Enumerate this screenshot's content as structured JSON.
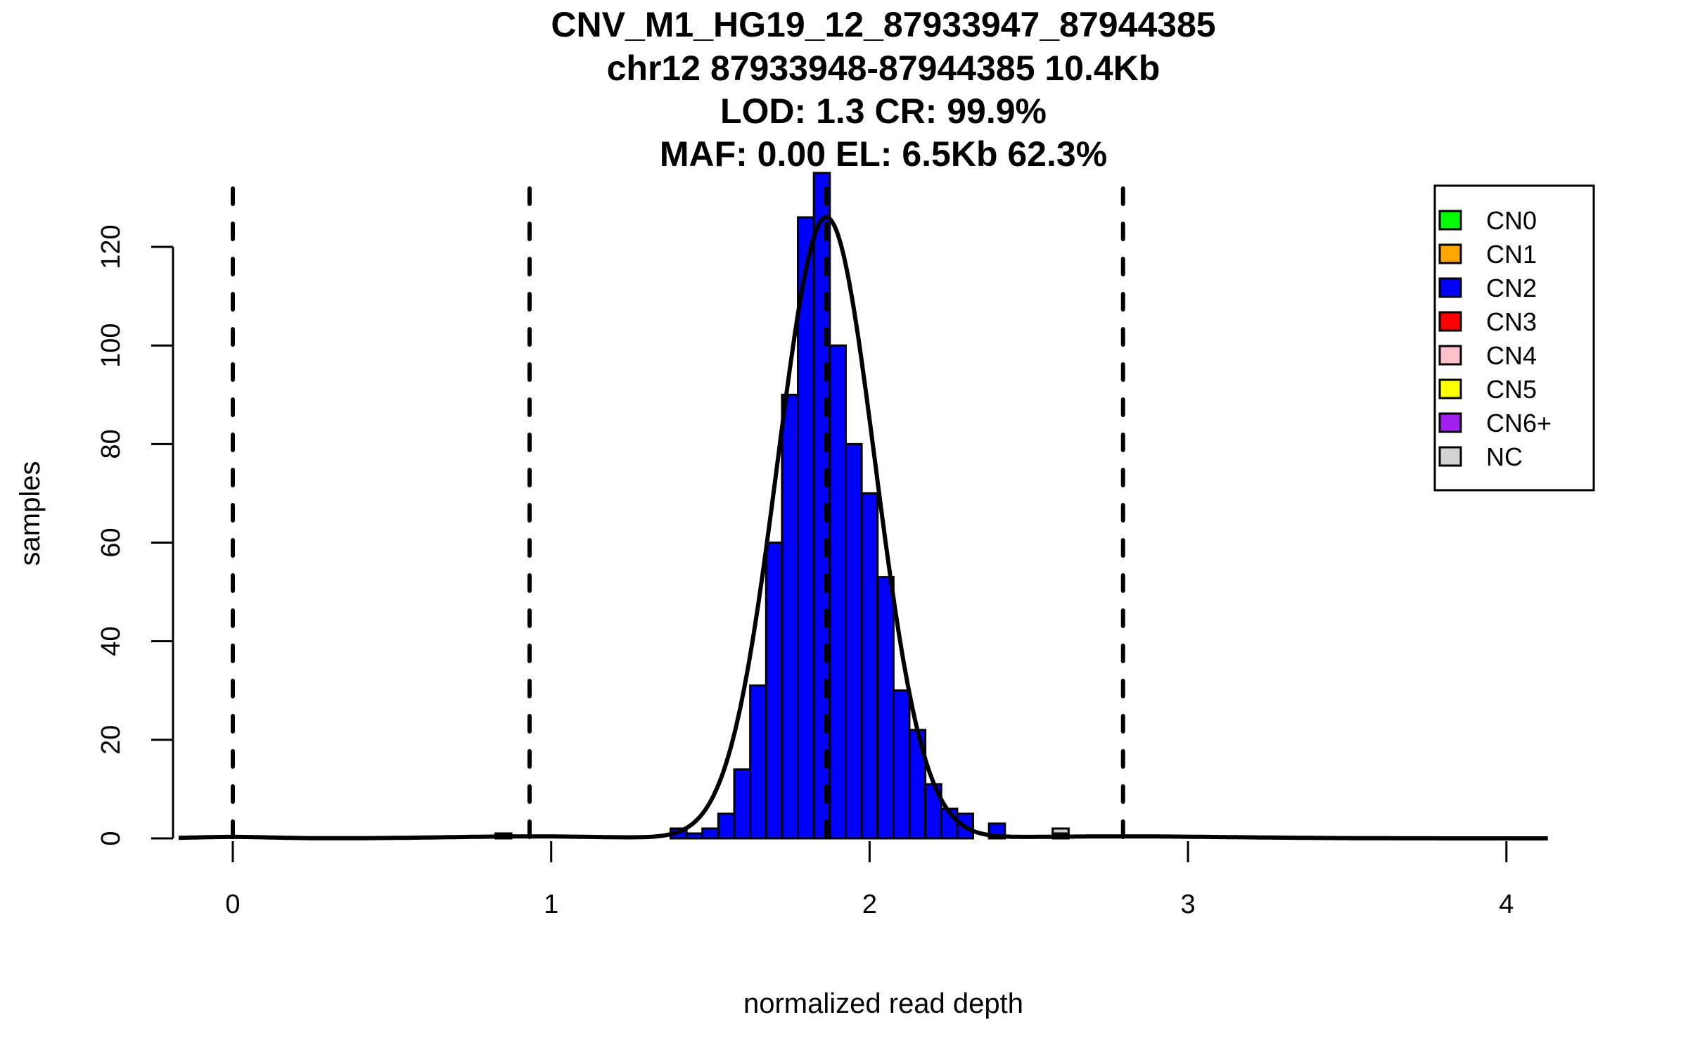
{
  "chart_data": {
    "type": "bar",
    "title_lines": [
      "CNV_M1_HG19_12_87933947_87944385",
      "chr12 87933948-87944385 10.4Kb",
      "LOD: 1.3 CR: 99.9%",
      "MAF: 0.00 EL: 6.5Kb 62.3%"
    ],
    "xlabel": "normalized read depth",
    "ylabel": "samples",
    "xlim": [
      -0.17,
      4.13
    ],
    "ylim": [
      0,
      135
    ],
    "xticks": [
      "0",
      "1",
      "2",
      "3",
      "4"
    ],
    "yticks": [
      "0",
      "20",
      "40",
      "60",
      "80",
      "100",
      "120"
    ],
    "bin_width": 0.05,
    "bars": [
      {
        "left": 0.825,
        "class": "CN1",
        "count": 1
      },
      {
        "left": 1.375,
        "class": "CN2",
        "count": 2
      },
      {
        "left": 1.425,
        "class": "CN2",
        "count": 1
      },
      {
        "left": 1.475,
        "class": "CN2",
        "count": 2
      },
      {
        "left": 1.525,
        "class": "CN2",
        "count": 5
      },
      {
        "left": 1.575,
        "class": "CN2",
        "count": 14
      },
      {
        "left": 1.625,
        "class": "CN2",
        "count": 31
      },
      {
        "left": 1.675,
        "class": "CN2",
        "count": 60
      },
      {
        "left": 1.725,
        "class": "CN2",
        "count": 90
      },
      {
        "left": 1.775,
        "class": "CN2",
        "count": 126
      },
      {
        "left": 1.825,
        "class": "CN2",
        "count": 135
      },
      {
        "left": 1.875,
        "class": "CN2",
        "count": 100
      },
      {
        "left": 1.925,
        "class": "CN2",
        "count": 80
      },
      {
        "left": 1.975,
        "class": "CN2",
        "count": 70
      },
      {
        "left": 2.025,
        "class": "CN2",
        "count": 53
      },
      {
        "left": 2.075,
        "class": "CN2",
        "count": 30
      },
      {
        "left": 2.125,
        "class": "CN2",
        "count": 22
      },
      {
        "left": 2.175,
        "class": "CN2",
        "count": 11
      },
      {
        "left": 2.225,
        "class": "CN2",
        "count": 6
      },
      {
        "left": 2.275,
        "class": "CN2",
        "count": 5
      },
      {
        "left": 2.375,
        "class": "CN2",
        "count": 3
      },
      {
        "left": 2.575,
        "class": "CN3",
        "count": 1
      },
      {
        "left": 2.575,
        "class": "NC",
        "count": 1
      }
    ],
    "cn_thresholds": [
      0,
      0.932,
      1.864,
      2.796
    ],
    "fit_components": [
      {
        "mean": 0,
        "sd": 0.12,
        "peak": 0.3
      },
      {
        "mean": 0.932,
        "sd": 0.25,
        "peak": 0.4
      },
      {
        "mean": 1.864,
        "sd": 0.153,
        "peak": 126
      },
      {
        "mean": 2.796,
        "sd": 0.35,
        "peak": 0.4
      }
    ],
    "legend": {
      "placement": "top-right",
      "entries": [
        {
          "label": "CN0",
          "color": "#00ff00"
        },
        {
          "label": "CN1",
          "color": "#ffa500"
        },
        {
          "label": "CN2",
          "color": "#0000ff"
        },
        {
          "label": "CN3",
          "color": "#ff0000"
        },
        {
          "label": "CN4",
          "color": "#ffc0cb"
        },
        {
          "label": "CN5",
          "color": "#ffff00"
        },
        {
          "label": "CN6+",
          "color": "#a020f0"
        },
        {
          "label": "NC",
          "color": "#d3d3d3"
        }
      ]
    }
  }
}
